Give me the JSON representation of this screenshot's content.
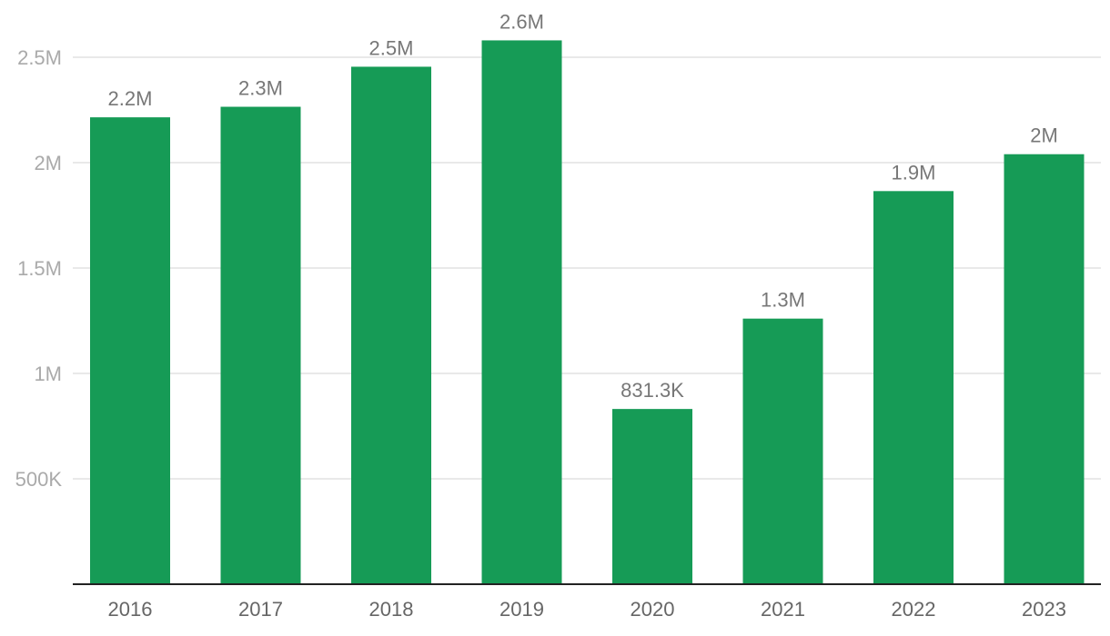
{
  "colors": {
    "bar": "#169B56",
    "grid": "#e2e2e2",
    "axis": "#222222",
    "y_tick_text": "#aaaaaa",
    "x_tick_text": "#666666",
    "data_label_text": "#777777"
  },
  "chart_data": {
    "type": "bar",
    "categories": [
      "2016",
      "2017",
      "2018",
      "2019",
      "2020",
      "2021",
      "2022",
      "2023"
    ],
    "values": [
      2215000,
      2265000,
      2455000,
      2580000,
      831300,
      1260000,
      1865000,
      2040000
    ],
    "data_labels": [
      "2.2M",
      "2.3M",
      "2.5M",
      "2.6M",
      "831.3K",
      "1.3M",
      "1.9M",
      "2M"
    ],
    "y_ticks": [
      {
        "value": 500000,
        "label": "500K"
      },
      {
        "value": 1000000,
        "label": "1M"
      },
      {
        "value": 1500000,
        "label": "1.5M"
      },
      {
        "value": 2000000,
        "label": "2M"
      },
      {
        "value": 2500000,
        "label": "2.5M"
      }
    ],
    "ylim": [
      0,
      2750000
    ],
    "grid": true,
    "legend": "none",
    "title": "",
    "xlabel": "",
    "ylabel": ""
  }
}
